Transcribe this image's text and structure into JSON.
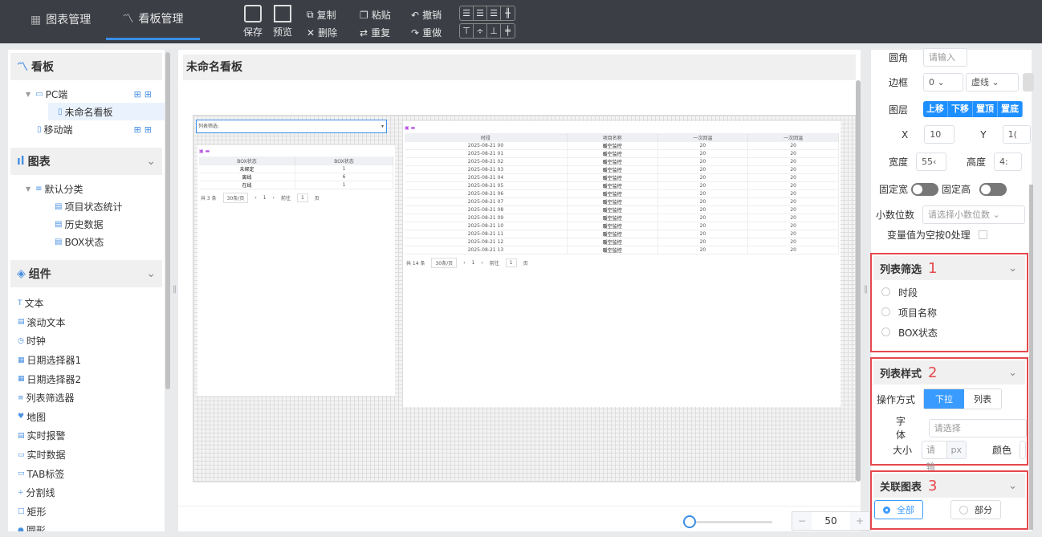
{
  "topbar": {
    "tabs": [
      {
        "label": "图表管理",
        "icon": "grid-icon"
      },
      {
        "label": "看板管理",
        "icon": "line-chart-icon",
        "active": true
      }
    ],
    "save": "保存",
    "preview": "预览",
    "copy": "复制",
    "paste": "粘贴",
    "undo": "撤销",
    "delete": "删除",
    "repeat": "重复",
    "redo": "重做"
  },
  "left": {
    "board_title": "看板",
    "pc": "PC端",
    "board_item": "未命名看板",
    "mobile": "移动端",
    "charts_title": "图表",
    "category": "默认分类",
    "charts": [
      "项目状态统计",
      "历史数据",
      "BOX状态"
    ],
    "components_title": "组件",
    "components": [
      {
        "label": "文本",
        "icon": "T"
      },
      {
        "label": "滚动文本",
        "icon": "▤"
      },
      {
        "label": "时钟",
        "icon": "◷"
      },
      {
        "label": "日期选择器1",
        "icon": "▦"
      },
      {
        "label": "日期选择器2",
        "icon": "▦"
      },
      {
        "label": "列表筛选器",
        "icon": "≡"
      },
      {
        "label": "地图",
        "icon": "♥"
      },
      {
        "label": "实时报警",
        "icon": "▤"
      },
      {
        "label": "实时数据",
        "icon": "▭"
      },
      {
        "label": "TAB标签",
        "icon": "▭"
      },
      {
        "label": "分割线",
        "icon": "÷"
      },
      {
        "label": "矩形",
        "icon": "□"
      },
      {
        "label": "圆形",
        "icon": "●"
      }
    ]
  },
  "center": {
    "title": "未命名看板",
    "filter_label": "列表筛选:",
    "table1": {
      "headers": [
        "BOX状态",
        "BOX状态"
      ],
      "rows": [
        [
          "未绑定",
          "1"
        ],
        [
          "离线",
          "6"
        ],
        [
          "在线",
          "1"
        ]
      ],
      "total": "共 3 条",
      "page_size": "30条/页",
      "page": "1",
      "goto": "前往",
      "goto_val": "1",
      "page_unit": "页"
    },
    "table2": {
      "headers": [
        "时段",
        "项目名称",
        "一次回温",
        "一次回温"
      ],
      "rows": [
        [
          "2025-08-21 00",
          "暖空监控",
          "20",
          "20"
        ],
        [
          "2025-08-21 01",
          "暖空监控",
          "20",
          "20"
        ],
        [
          "2025-08-21 02",
          "暖空监控",
          "20",
          "20"
        ],
        [
          "2025-08-21 03",
          "暖空监控",
          "20",
          "20"
        ],
        [
          "2025-08-21 04",
          "暖空监控",
          "20",
          "20"
        ],
        [
          "2025-08-21 05",
          "暖空监控",
          "20",
          "20"
        ],
        [
          "2025-08-21 06",
          "暖空监控",
          "20",
          "20"
        ],
        [
          "2025-08-21 07",
          "暖空监控",
          "20",
          "20"
        ],
        [
          "2025-08-21 08",
          "暖空监控",
          "20",
          "20"
        ],
        [
          "2025-08-21 09",
          "暖空监控",
          "20",
          "20"
        ],
        [
          "2025-08-21 10",
          "暖空监控",
          "20",
          "20"
        ],
        [
          "2025-08-21 11",
          "暖空监控",
          "20",
          "20"
        ],
        [
          "2025-08-21 12",
          "暖空监控",
          "20",
          "20"
        ],
        [
          "2025-08-21 13",
          "暖空监控",
          "20",
          "20"
        ]
      ],
      "total": "共 14 条",
      "page_size": "30条/页",
      "page": "1",
      "goto": "前往",
      "goto_val": "1",
      "page_unit": "页"
    },
    "zoom": {
      "value": "50",
      "minus": "−",
      "plus": "+",
      "slider_percent": 0
    }
  },
  "right": {
    "radius_label": "圆角",
    "radius_placeholder": "请输入",
    "border_label": "边框",
    "border_width": "0",
    "border_style": "虚线",
    "layer_label": "图层",
    "layer_buttons": [
      "上移",
      "下移",
      "置顶",
      "置底"
    ],
    "x_label": "X",
    "x_val": "10",
    "y_label": "Y",
    "y_val": "1(",
    "width_label": "宽度",
    "width_val": "55‹",
    "height_label": "高度",
    "height_val": "4:",
    "fixed_w": "固定宽",
    "fixed_h": "固定高",
    "decimal_label": "小数位数",
    "decimal_placeholder": "请选择小数位数",
    "null_zero": "变量值为空按0处理",
    "filter_section": {
      "title": "列表筛选",
      "num": "1",
      "options": [
        "时段",
        "项目名称",
        "BOX状态"
      ]
    },
    "style_section": {
      "title": "列表样式",
      "num": "2",
      "mode_label": "操作方式",
      "modes": [
        "下拉",
        "列表"
      ],
      "font_label": "字体",
      "font_placeholder": "请选择",
      "size_label": "大小",
      "size_placeholder": "请输",
      "size_unit": "px",
      "color_label": "颜色"
    },
    "link_section": {
      "title": "关联图表",
      "num": "3",
      "options": [
        "全部",
        "部分"
      ]
    }
  },
  "colors": {
    "accent": "#1e8fff",
    "highlight": "#e5484d",
    "topbar": "#3b3e45"
  }
}
